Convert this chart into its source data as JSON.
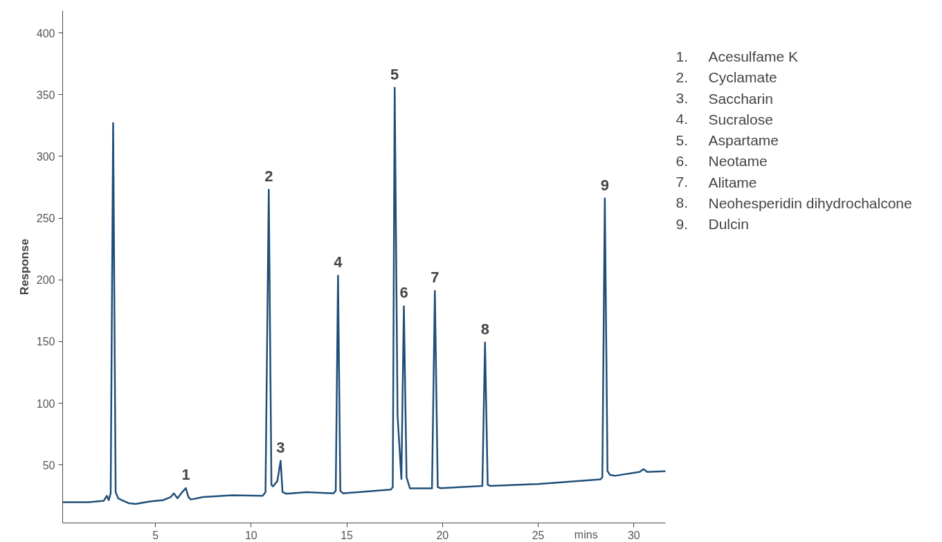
{
  "chart_data": {
    "type": "line",
    "ylabel": "Response",
    "xlabel": "mins",
    "xlim": [
      0.15,
      31.65
    ],
    "ylim": [
      3,
      418
    ],
    "xticks": [
      5,
      10,
      15,
      20,
      25,
      30
    ],
    "yticks": [
      50,
      100,
      150,
      200,
      250,
      300,
      350,
      400
    ],
    "grid": false,
    "marker": "none",
    "line_style": "solid",
    "series": [
      {
        "color": "#1f4e79",
        "x": [
          0.15,
          1.5,
          2.3,
          2.46,
          2.56,
          2.66,
          2.79,
          2.92,
          3.05,
          3.25,
          3.6,
          3.97,
          4.7,
          5.4,
          5.8,
          5.96,
          6.15,
          6.4,
          6.59,
          6.72,
          6.85,
          7.5,
          9.0,
          10.6,
          10.75,
          10.92,
          11.06,
          11.14,
          11.37,
          11.54,
          11.64,
          11.85,
          12.9,
          14.3,
          14.42,
          14.54,
          14.66,
          14.8,
          17.3,
          17.4,
          17.5,
          17.65,
          17.85,
          17.98,
          18.12,
          18.3,
          19.45,
          19.6,
          19.75,
          19.9,
          22.08,
          22.22,
          22.36,
          22.5,
          25.0,
          28.25,
          28.35,
          28.48,
          28.62,
          28.75,
          29.0,
          30.3,
          30.5,
          30.7,
          31.65
        ],
        "values": [
          19.8,
          19.8,
          21,
          25,
          21.5,
          27,
          327,
          28,
          23,
          21.5,
          19,
          18.4,
          20.4,
          21.5,
          24,
          27,
          23,
          28,
          31.2,
          24,
          22,
          24,
          25.5,
          25,
          28,
          273,
          34,
          32.6,
          37,
          53.4,
          28,
          26.7,
          28,
          27,
          29,
          203.4,
          29,
          27,
          30,
          32,
          355.6,
          90,
          38.6,
          178.6,
          40,
          31,
          31,
          191,
          32,
          31.2,
          33,
          149.3,
          34,
          33,
          34.6,
          38.3,
          40,
          266,
          45,
          42,
          41.2,
          44.3,
          46.6,
          44.3,
          44.9
        ]
      }
    ],
    "annotations": [
      {
        "text": "1",
        "x": 6.59,
        "y": 31.2
      },
      {
        "text": "2",
        "x": 10.92,
        "y": 273
      },
      {
        "text": "3",
        "x": 11.54,
        "y": 53.4
      },
      {
        "text": "4",
        "x": 14.54,
        "y": 203.4
      },
      {
        "text": "5",
        "x": 17.5,
        "y": 355.6
      },
      {
        "text": "6",
        "x": 17.98,
        "y": 178.6
      },
      {
        "text": "7",
        "x": 19.6,
        "y": 191
      },
      {
        "text": "8",
        "x": 22.22,
        "y": 149.3
      },
      {
        "text": "9",
        "x": 28.48,
        "y": 266
      },
      "1.\tAcesulfame K",
      "2.\tCyclamate",
      "3.\tSaccharin",
      "4.\tSucralose",
      "5.\tAspartame",
      "6.\tNeotame",
      "7.\tAlitame",
      "8.\tNeohesperidin dihydrochalcone",
      "9.\tDulcin"
    ]
  }
}
